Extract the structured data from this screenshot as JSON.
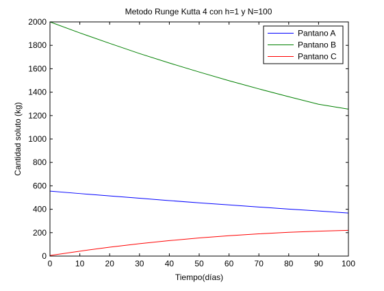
{
  "chart_data": {
    "type": "line",
    "title": "Metodo Runge Kutta 4 con h=1 y N=100",
    "xlabel": "Tiempo(días)",
    "ylabel": "Cantidad soluto (kg)",
    "xlim": [
      0,
      100
    ],
    "ylim": [
      0,
      2000
    ],
    "xticks": [
      0,
      10,
      20,
      30,
      40,
      50,
      60,
      70,
      80,
      90,
      100
    ],
    "yticks": [
      0,
      200,
      400,
      600,
      800,
      1000,
      1200,
      1400,
      1600,
      1800,
      2000
    ],
    "grid": false,
    "legend_position": "top-right",
    "x": [
      0,
      10,
      20,
      30,
      40,
      50,
      60,
      70,
      80,
      90,
      100
    ],
    "series": [
      {
        "name": "Pantano A",
        "color": "#0000ff",
        "values": [
          555,
          534,
          514,
          494,
          474,
          455,
          437,
          419,
          401,
          385,
          368
        ]
      },
      {
        "name": "Pantano B",
        "color": "#008000",
        "values": [
          2000,
          1906,
          1817,
          1730,
          1649,
          1572,
          1498,
          1428,
          1361,
          1297,
          1255
        ]
      },
      {
        "name": "Pantano C",
        "color": "#ff0000",
        "values": [
          5,
          42,
          76,
          106,
          132,
          155,
          174,
          190,
          203,
          213,
          220
        ]
      }
    ]
  }
}
